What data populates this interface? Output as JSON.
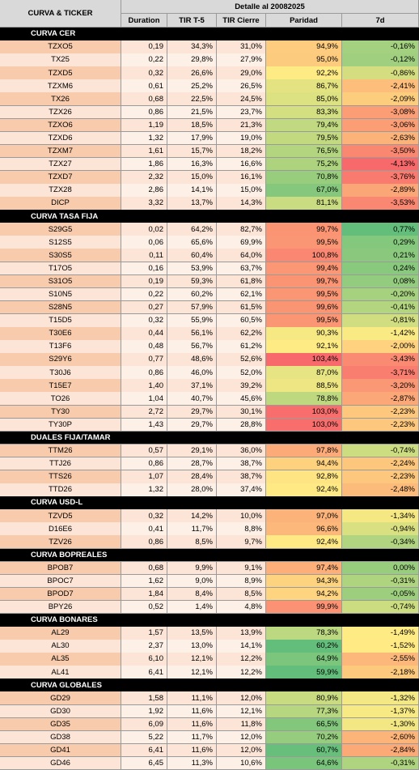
{
  "header": {
    "ticker_col": "CURVA & TICKER",
    "detail": "Detalle al 20082025",
    "columns": [
      "Duration",
      "TIR T-5",
      "TIR Cierre",
      "Paridad",
      "7d"
    ]
  },
  "sections": [
    {
      "title": "CURVA CER",
      "rows": [
        [
          "TZXO5",
          "0,19",
          "34,3%",
          "31,0%",
          "94,9%",
          "-0,16%"
        ],
        [
          "TX25",
          "0,22",
          "29,8%",
          "27,9%",
          "95,0%",
          "-0,12%"
        ],
        [
          "TZXD5",
          "0,32",
          "26,6%",
          "29,0%",
          "92,2%",
          "-0,86%"
        ],
        [
          "TZXM6",
          "0,61",
          "25,2%",
          "26,5%",
          "86,7%",
          "-2,41%"
        ],
        [
          "TX26",
          "0,68",
          "22,5%",
          "24,5%",
          "85,0%",
          "-2,09%"
        ],
        [
          "TZX26",
          "0,86",
          "21,5%",
          "23,7%",
          "83,3%",
          "-3,08%"
        ],
        [
          "TZXO6",
          "1,19",
          "18,5%",
          "21,3%",
          "79,4%",
          "-3,06%"
        ],
        [
          "TZXD6",
          "1,32",
          "17,9%",
          "19,0%",
          "79,5%",
          "-2,63%"
        ],
        [
          "TZXM7",
          "1,61",
          "15,7%",
          "18,2%",
          "76,5%",
          "-3,50%"
        ],
        [
          "TZX27",
          "1,86",
          "16,3%",
          "16,6%",
          "75,2%",
          "-4,13%"
        ],
        [
          "TZXD7",
          "2,32",
          "15,0%",
          "16,1%",
          "70,8%",
          "-3,76%"
        ],
        [
          "TZX28",
          "2,86",
          "14,1%",
          "15,0%",
          "67,0%",
          "-2,89%"
        ],
        [
          "DICP",
          "3,32",
          "13,7%",
          "14,3%",
          "81,1%",
          "-3,53%"
        ]
      ]
    },
    {
      "title": "CURVA TASA FIJA",
      "rows": [
        [
          "S29G5",
          "0,02",
          "64,2%",
          "82,7%",
          "99,7%",
          "0,77%"
        ],
        [
          "S12S5",
          "0,06",
          "65,6%",
          "69,9%",
          "99,5%",
          "0,29%"
        ],
        [
          "S30S5",
          "0,11",
          "60,4%",
          "64,0%",
          "100,8%",
          "0,21%"
        ],
        [
          "T17O5",
          "0,16",
          "53,9%",
          "63,7%",
          "99,4%",
          "0,24%"
        ],
        [
          "S31O5",
          "0,19",
          "59,3%",
          "61,8%",
          "99,7%",
          "0,08%"
        ],
        [
          "S10N5",
          "0,22",
          "60,2%",
          "62,1%",
          "99,5%",
          "-0,20%"
        ],
        [
          "S28N5",
          "0,27",
          "57,9%",
          "61,5%",
          "99,6%",
          "-0,41%"
        ],
        [
          "T15D5",
          "0,32",
          "55,9%",
          "60,5%",
          "99,5%",
          "-0,81%"
        ],
        [
          "T30E6",
          "0,44",
          "56,1%",
          "62,2%",
          "90,3%",
          "-1,42%"
        ],
        [
          "T13F6",
          "0,48",
          "56,7%",
          "61,2%",
          "92,1%",
          "-2,00%"
        ],
        [
          "S29Y6",
          "0,77",
          "48,6%",
          "52,6%",
          "103,4%",
          "-3,43%"
        ],
        [
          "T30J6",
          "0,86",
          "46,0%",
          "52,0%",
          "87,0%",
          "-3,71%"
        ],
        [
          "T15E7",
          "1,40",
          "37,1%",
          "39,2%",
          "88,5%",
          "-3,20%"
        ],
        [
          "TO26",
          "1,04",
          "40,7%",
          "45,6%",
          "78,8%",
          "-2,87%"
        ],
        [
          "TY30",
          "2,72",
          "29,7%",
          "30,1%",
          "103,0%",
          "-2,23%"
        ],
        [
          "TY30P",
          "1,43",
          "29,7%",
          "28,8%",
          "103,0%",
          "-2,23%"
        ]
      ]
    },
    {
      "title": "DUALES FIJA/TAMAR",
      "rows": [
        [
          "TTM26",
          "0,57",
          "29,1%",
          "36,0%",
          "97,8%",
          "-0,74%"
        ],
        [
          "TTJ26",
          "0,86",
          "28,7%",
          "38,7%",
          "94,4%",
          "-2,24%"
        ],
        [
          "TTS26",
          "1,07",
          "28,4%",
          "38,7%",
          "92,8%",
          "-2,23%"
        ],
        [
          "TTD26",
          "1,32",
          "28,0%",
          "37,4%",
          "92,4%",
          "-2,48%"
        ]
      ]
    },
    {
      "title": "CURVA USD-L",
      "rows": [
        [
          "TZVD5",
          "0,32",
          "14,2%",
          "10,0%",
          "97,0%",
          "-1,34%"
        ],
        [
          "D16E6",
          "0,41",
          "11,7%",
          "8,8%",
          "96,6%",
          "-0,94%"
        ],
        [
          "TZV26",
          "0,86",
          "8,5%",
          "9,7%",
          "92,4%",
          "-0,34%"
        ]
      ]
    },
    {
      "title": "CURVA BOPREALES",
      "rows": [
        [
          "BPOB7",
          "0,68",
          "9,9%",
          "9,1%",
          "97,4%",
          "0,00%"
        ],
        [
          "BPOC7",
          "1,62",
          "9,0%",
          "8,9%",
          "94,3%",
          "-0,31%"
        ],
        [
          "BPOD7",
          "1,84",
          "8,4%",
          "8,5%",
          "94,2%",
          "-0,05%"
        ],
        [
          "BPY26",
          "0,52",
          "1,4%",
          "4,8%",
          "99,9%",
          "-0,74%"
        ]
      ]
    },
    {
      "title": "CURVA BONARES",
      "rows": [
        [
          "AL29",
          "1,57",
          "13,5%",
          "13,9%",
          "78,3%",
          "-1,49%"
        ],
        [
          "AL30",
          "2,37",
          "13,0%",
          "14,1%",
          "60,2%",
          "-1,52%"
        ],
        [
          "AL35",
          "6,10",
          "12,1%",
          "12,2%",
          "64,9%",
          "-2,55%"
        ],
        [
          "AL41",
          "6,41",
          "12,1%",
          "12,2%",
          "59,9%",
          "-2,18%"
        ]
      ]
    },
    {
      "title": "CURVA GLOBALES",
      "rows": [
        [
          "GD29",
          "1,58",
          "11,1%",
          "12,0%",
          "80,9%",
          "-1,32%"
        ],
        [
          "GD30",
          "1,92",
          "11,6%",
          "12,1%",
          "77,3%",
          "-1,37%"
        ],
        [
          "GD35",
          "6,09",
          "11,6%",
          "11,8%",
          "66,5%",
          "-1,30%"
        ],
        [
          "GD38",
          "5,22",
          "11,7%",
          "12,0%",
          "70,2%",
          "-2,60%"
        ],
        [
          "GD41",
          "6,41",
          "11,6%",
          "12,0%",
          "60,7%",
          "-2,84%"
        ],
        [
          "GD46",
          "6,45",
          "11,3%",
          "10,6%",
          "64,6%",
          "-0,31%"
        ]
      ]
    }
  ]
}
